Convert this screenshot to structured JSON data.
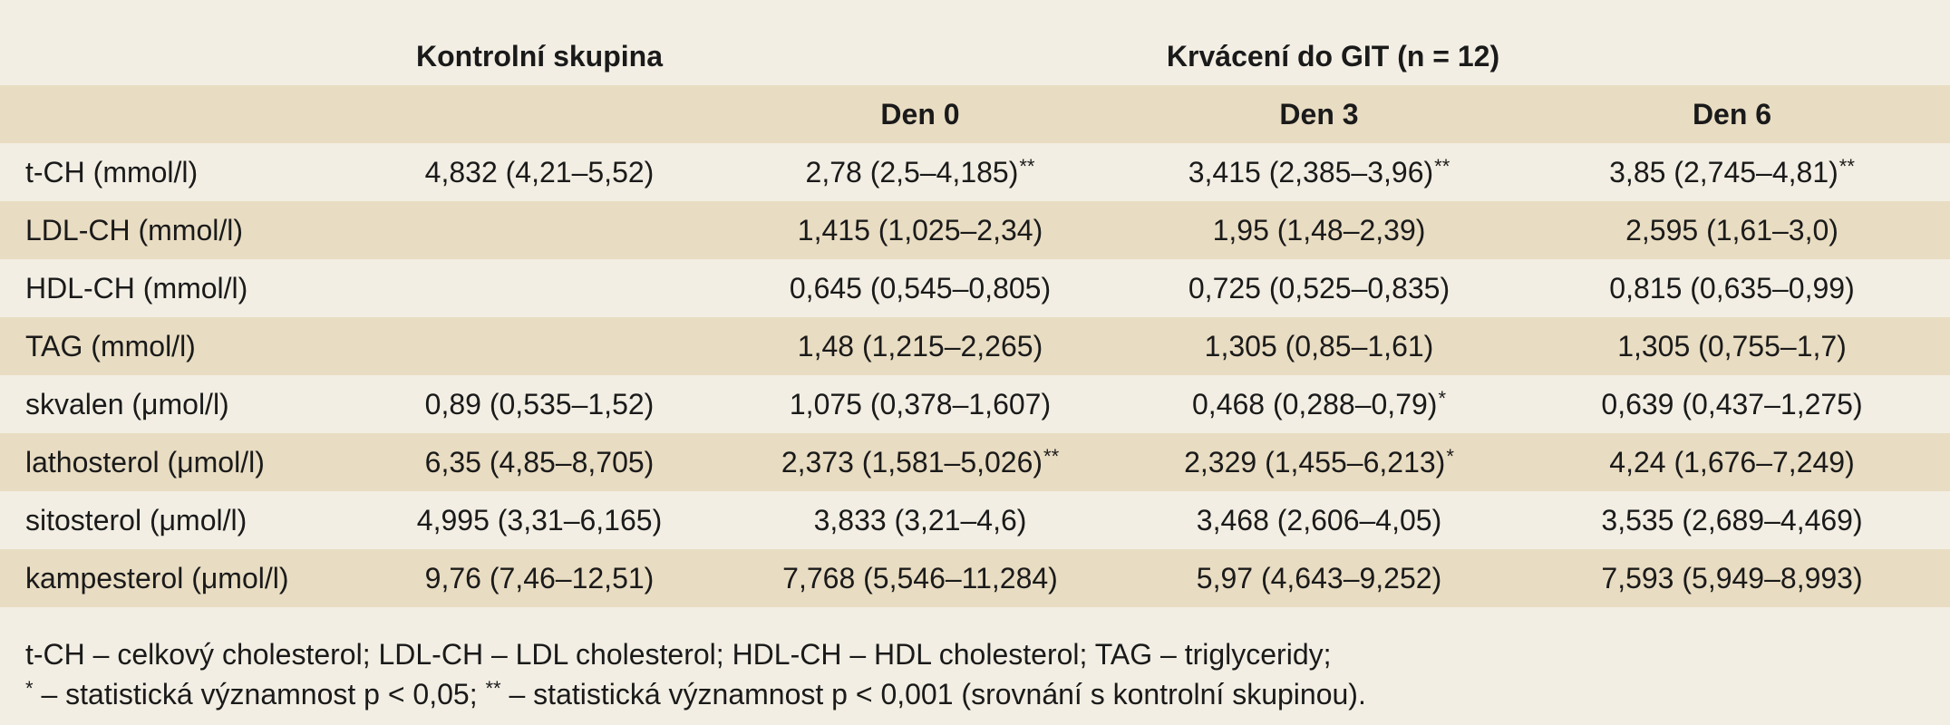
{
  "header": {
    "control_group": "Kontrolní skupina",
    "bleeding_group": "Krvácení do GIT (n = 12)",
    "day0": "Den 0",
    "day3": "Den 3",
    "day6": "Den 6"
  },
  "rows": [
    {
      "label": "t-CH  (mmol/l)",
      "control": "4,832 (4,21–5,52)",
      "day0": "2,78 (2,5–4,185)",
      "day0_sig": "**",
      "day3": "3,415 (2,385–3,96)",
      "day3_sig": "**",
      "day6": "3,85 (2,745–4,81)",
      "day6_sig": "**"
    },
    {
      "label": "LDL-CH  (mmol/l)",
      "control": "",
      "day0": "1,415 (1,025–2,34)",
      "day0_sig": "",
      "day3": "1,95 (1,48–2,39)",
      "day3_sig": "",
      "day6": "2,595 (1,61–3,0)",
      "day6_sig": ""
    },
    {
      "label": "HDL-CH  (mmol/l)",
      "control": "",
      "day0": "0,645 (0,545–0,805)",
      "day0_sig": "",
      "day3": "0,725 (0,525–0,835)",
      "day3_sig": "",
      "day6": "0,815 (0,635–0,99)",
      "day6_sig": ""
    },
    {
      "label": "TAG  (mmol/l)",
      "control": "",
      "day0": "1,48 (1,215–2,265)",
      "day0_sig": "",
      "day3": "1,305 (0,85–1,61)",
      "day3_sig": "",
      "day6": "1,305 (0,755–1,7)",
      "day6_sig": ""
    },
    {
      "label": "skvalen  (μmol/l)",
      "control": "0,89 (0,535–1,52)",
      "day0": "1,075 (0,378–1,607)",
      "day0_sig": "",
      "day3": "0,468 (0,288–0,79)",
      "day3_sig": "*",
      "day6": "0,639 (0,437–1,275)",
      "day6_sig": ""
    },
    {
      "label": "lathosterol  (μmol/l)",
      "control": "6,35 (4,85–8,705)",
      "day0": "2,373 (1,581–5,026)",
      "day0_sig": "**",
      "day3": "2,329 (1,455–6,213)",
      "day3_sig": "*",
      "day6": "4,24 (1,676–7,249)",
      "day6_sig": ""
    },
    {
      "label": "sitosterol  (μmol/l)",
      "control": "4,995 (3,31–6,165)",
      "day0": "3,833 (3,21–4,6)",
      "day0_sig": "",
      "day3": "3,468 (2,606–4,05)",
      "day3_sig": "",
      "day6": "3,535 (2,689–4,469)",
      "day6_sig": ""
    },
    {
      "label": "kampesterol  (μmol/l)",
      "control": "9,76 (7,46–12,51)",
      "day0": "7,768 (5,546–11,284)",
      "day0_sig": "",
      "day3": "5,97 (4,643–9,252)",
      "day3_sig": "",
      "day6": "7,593 (5,949–8,993)",
      "day6_sig": ""
    }
  ],
  "footnotes": {
    "abbreviations": "t-CH – celkový cholesterol; LDL-CH – LDL cholesterol; HDL-CH – HDL cholesterol; TAG – triglyceridy;",
    "sig_marker_1": "*",
    "sig_text_1": " – statistická významnost p < 0,05; ",
    "sig_marker_2": "**",
    "sig_text_2": " – statistická významnost  p < 0,001 (srovnání s kontrolní skupinou)."
  },
  "colors": {
    "background": "#f2eee3",
    "band": "#e8dcc2",
    "text": "#1a1a1a"
  }
}
